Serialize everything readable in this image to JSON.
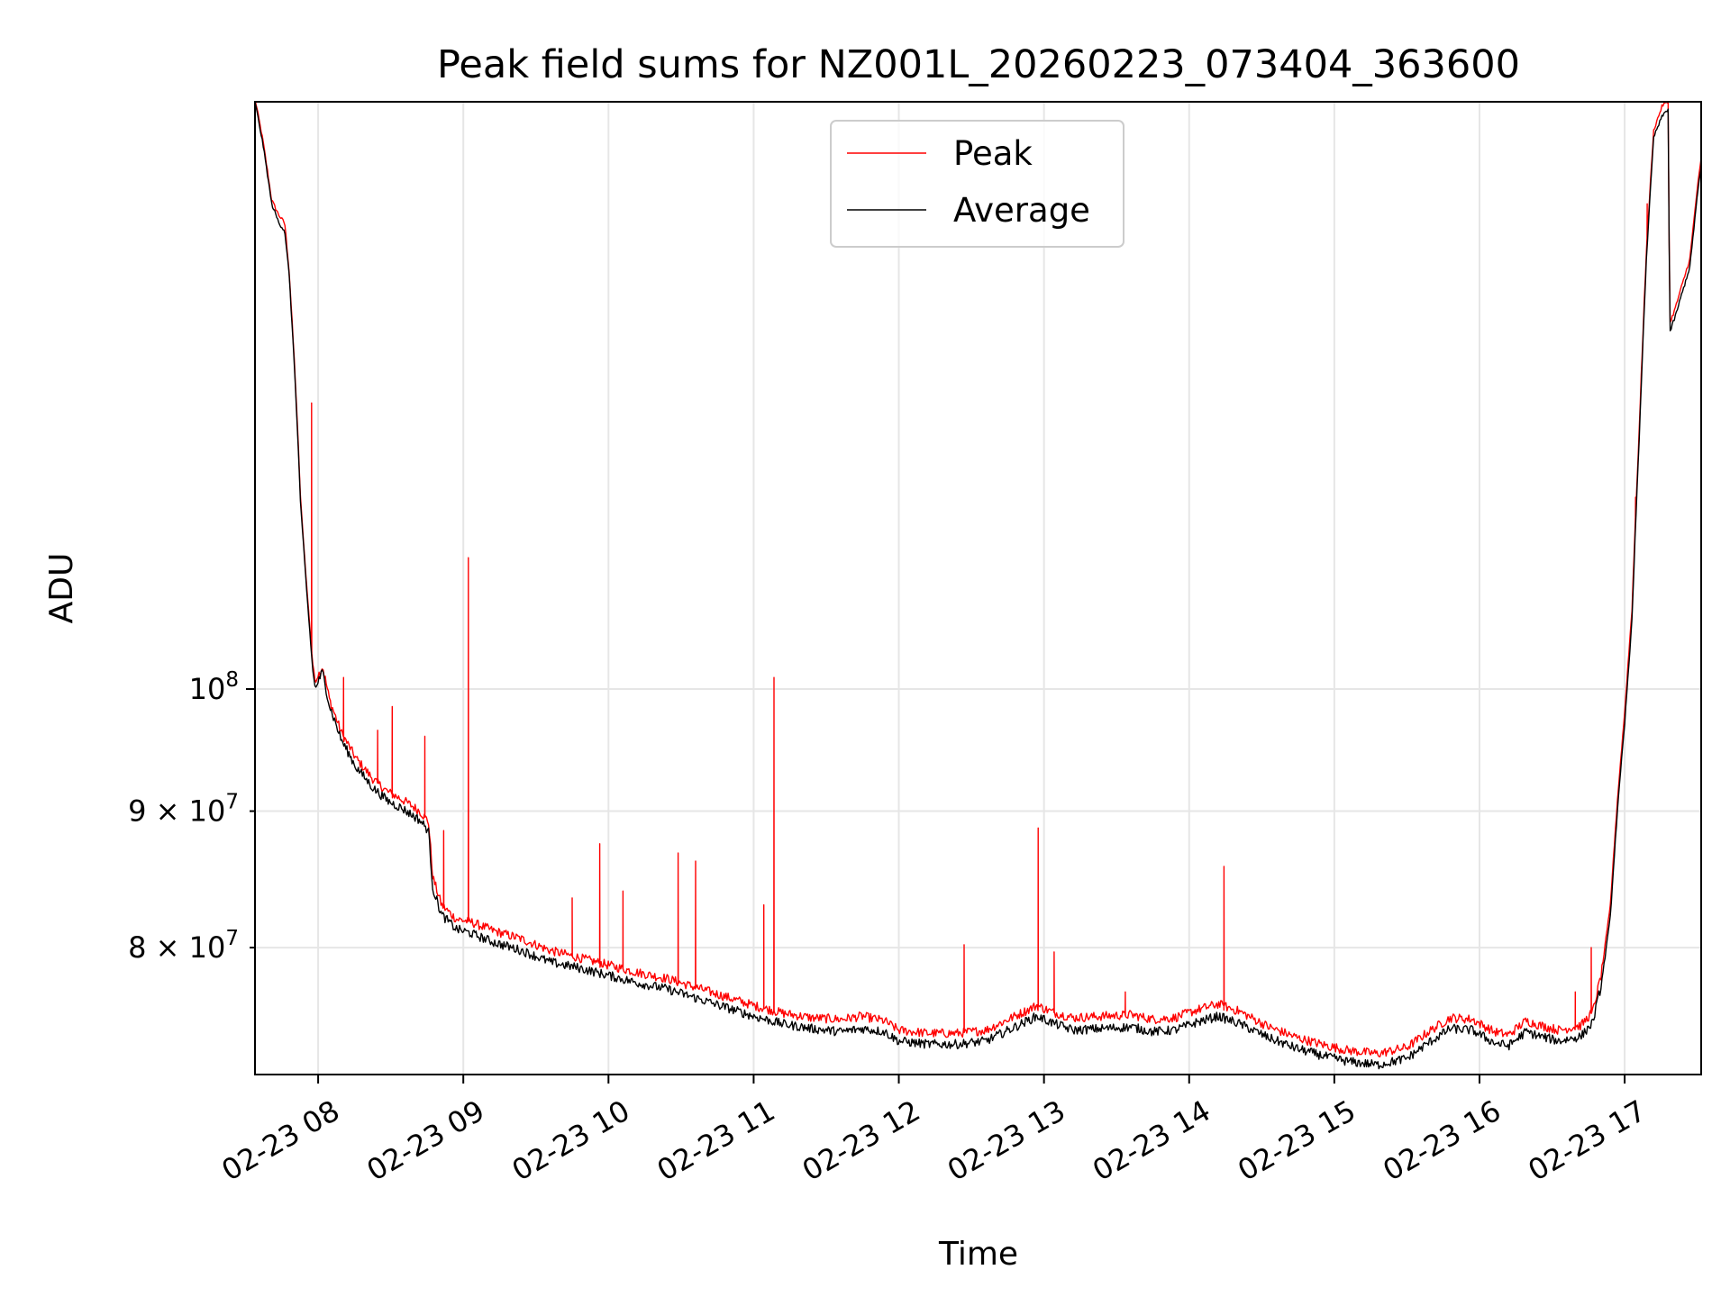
{
  "chart_data": {
    "type": "line",
    "title": "Peak field sums for NZ001L_20260223_073404_363600",
    "xlabel": "Time",
    "ylabel": "ADU",
    "xlim": [
      7.565,
      17.527
    ],
    "ylim": [
      71700000,
      166000000
    ],
    "yscale": "log",
    "grid": true,
    "legend_position": "top-center",
    "x_ticks": [
      {
        "value": 8,
        "label": "02-23 08"
      },
      {
        "value": 9,
        "label": "02-23 09"
      },
      {
        "value": 10,
        "label": "02-23 10"
      },
      {
        "value": 11,
        "label": "02-23 11"
      },
      {
        "value": 12,
        "label": "02-23 12"
      },
      {
        "value": 13,
        "label": "02-23 13"
      },
      {
        "value": 14,
        "label": "02-23 14"
      },
      {
        "value": 15,
        "label": "02-23 15"
      },
      {
        "value": 16,
        "label": "02-23 16"
      },
      {
        "value": 17,
        "label": "02-23 17"
      }
    ],
    "y_ticks": [
      {
        "value": 80000000,
        "mantissa": "8",
        "base": "10",
        "exp": "7",
        "type": "minor"
      },
      {
        "value": 90000000,
        "mantissa": "9",
        "base": "10",
        "exp": "7",
        "type": "minor"
      },
      {
        "value": 100000000,
        "mantissa": "",
        "base": "10",
        "exp": "8",
        "type": "major"
      }
    ],
    "series": [
      {
        "name": "Average",
        "color": "#000000",
        "points": [
          [
            7.565,
            166000000
          ],
          [
            7.62,
            160000000
          ],
          [
            7.68,
            152000000
          ],
          [
            7.73,
            149500000
          ],
          [
            7.77,
            148500000
          ],
          [
            7.8,
            143000000
          ],
          [
            7.84,
            131000000
          ],
          [
            7.88,
            117000000
          ],
          [
            7.92,
            109000000
          ],
          [
            7.96,
            102000000
          ],
          [
            7.98,
            100000000
          ],
          [
            8.03,
            101500000
          ],
          [
            8.08,
            98500000
          ],
          [
            8.16,
            95700000
          ],
          [
            8.26,
            93500000
          ],
          [
            8.38,
            91800000
          ],
          [
            8.48,
            90800000
          ],
          [
            8.58,
            90200000
          ],
          [
            8.7,
            89300000
          ],
          [
            8.76,
            88500000
          ],
          [
            8.79,
            84200000
          ],
          [
            8.85,
            82300000
          ],
          [
            8.95,
            81300000
          ],
          [
            9.05,
            81000000
          ],
          [
            9.2,
            80400000
          ],
          [
            9.4,
            79800000
          ],
          [
            9.6,
            79000000
          ],
          [
            9.8,
            78600000
          ],
          [
            10.0,
            78100000
          ],
          [
            10.2,
            77600000
          ],
          [
            10.4,
            77200000
          ],
          [
            10.6,
            76600000
          ],
          [
            10.8,
            76000000
          ],
          [
            11.0,
            75400000
          ],
          [
            11.2,
            74900000
          ],
          [
            11.4,
            74600000
          ],
          [
            11.6,
            74400000
          ],
          [
            11.75,
            74600000
          ],
          [
            11.9,
            74400000
          ],
          [
            12.0,
            73800000
          ],
          [
            12.2,
            73600000
          ],
          [
            12.4,
            73600000
          ],
          [
            12.6,
            73800000
          ],
          [
            12.8,
            74700000
          ],
          [
            12.95,
            75400000
          ],
          [
            13.05,
            75000000
          ],
          [
            13.2,
            74500000
          ],
          [
            13.4,
            74600000
          ],
          [
            13.6,
            74700000
          ],
          [
            13.75,
            74400000
          ],
          [
            13.9,
            74500000
          ],
          [
            14.05,
            75000000
          ],
          [
            14.2,
            75400000
          ],
          [
            14.35,
            74900000
          ],
          [
            14.55,
            74000000
          ],
          [
            14.75,
            73300000
          ],
          [
            14.95,
            72800000
          ],
          [
            15.1,
            72500000
          ],
          [
            15.3,
            72300000
          ],
          [
            15.5,
            72700000
          ],
          [
            15.65,
            73700000
          ],
          [
            15.8,
            74600000
          ],
          [
            15.95,
            74500000
          ],
          [
            16.1,
            73700000
          ],
          [
            16.2,
            73500000
          ],
          [
            16.32,
            74400000
          ],
          [
            16.42,
            74100000
          ],
          [
            16.55,
            73800000
          ],
          [
            16.7,
            74100000
          ],
          [
            16.78,
            75000000
          ],
          [
            16.84,
            77500000
          ],
          [
            16.9,
            82000000
          ],
          [
            16.95,
            90000000
          ],
          [
            17.0,
            97000000
          ],
          [
            17.05,
            106000000
          ],
          [
            17.1,
            124000000
          ],
          [
            17.15,
            145000000
          ],
          [
            17.2,
            161000000
          ],
          [
            17.26,
            164000000
          ],
          [
            17.3,
            165000000
          ],
          [
            17.31,
            136000000
          ],
          [
            17.35,
            138000000
          ],
          [
            17.4,
            141000000
          ],
          [
            17.45,
            144000000
          ],
          [
            17.5,
            153000000
          ],
          [
            17.527,
            157000000
          ]
        ],
        "spikes": []
      },
      {
        "name": "Peak",
        "color": "#ff0000",
        "points": [
          [
            7.565,
            166500000
          ],
          [
            7.62,
            160500000
          ],
          [
            7.68,
            152500000
          ],
          [
            7.73,
            150500000
          ],
          [
            7.77,
            149500000
          ],
          [
            7.8,
            143500000
          ],
          [
            7.84,
            131500000
          ],
          [
            7.88,
            117500000
          ],
          [
            7.92,
            109500000
          ],
          [
            7.96,
            102500000
          ],
          [
            7.98,
            100600000
          ],
          [
            8.03,
            102000000
          ],
          [
            8.08,
            99000000
          ],
          [
            8.16,
            96300000
          ],
          [
            8.26,
            94200000
          ],
          [
            8.38,
            92500000
          ],
          [
            8.48,
            91500000
          ],
          [
            8.58,
            90900000
          ],
          [
            8.7,
            90000000
          ],
          [
            8.76,
            89200000
          ],
          [
            8.79,
            85000000
          ],
          [
            8.85,
            83000000
          ],
          [
            8.95,
            82000000
          ],
          [
            9.05,
            81800000
          ],
          [
            9.2,
            81200000
          ],
          [
            9.4,
            80600000
          ],
          [
            9.6,
            79800000
          ],
          [
            9.8,
            79300000
          ],
          [
            10.0,
            78800000
          ],
          [
            10.2,
            78300000
          ],
          [
            10.4,
            77900000
          ],
          [
            10.6,
            77300000
          ],
          [
            10.8,
            76700000
          ],
          [
            11.0,
            76100000
          ],
          [
            11.2,
            75600000
          ],
          [
            11.4,
            75300000
          ],
          [
            11.6,
            75200000
          ],
          [
            11.75,
            75400000
          ],
          [
            11.9,
            75100000
          ],
          [
            12.0,
            74500000
          ],
          [
            12.2,
            74300000
          ],
          [
            12.4,
            74300000
          ],
          [
            12.6,
            74500000
          ],
          [
            12.8,
            75400000
          ],
          [
            12.95,
            76100000
          ],
          [
            13.05,
            75700000
          ],
          [
            13.2,
            75300000
          ],
          [
            13.4,
            75400000
          ],
          [
            13.6,
            75500000
          ],
          [
            13.75,
            75200000
          ],
          [
            13.9,
            75300000
          ],
          [
            14.05,
            75800000
          ],
          [
            14.2,
            76200000
          ],
          [
            14.35,
            75700000
          ],
          [
            14.55,
            74700000
          ],
          [
            14.75,
            74000000
          ],
          [
            14.95,
            73500000
          ],
          [
            15.1,
            73200000
          ],
          [
            15.3,
            73000000
          ],
          [
            15.5,
            73400000
          ],
          [
            15.65,
            74400000
          ],
          [
            15.8,
            75300000
          ],
          [
            15.95,
            75200000
          ],
          [
            16.1,
            74400000
          ],
          [
            16.2,
            74200000
          ],
          [
            16.32,
            75100000
          ],
          [
            16.42,
            74800000
          ],
          [
            16.55,
            74500000
          ],
          [
            16.7,
            74800000
          ],
          [
            16.78,
            75700000
          ],
          [
            16.84,
            78200000
          ],
          [
            16.9,
            82800000
          ],
          [
            16.95,
            90800000
          ],
          [
            17.0,
            98000000
          ],
          [
            17.05,
            107000000
          ],
          [
            17.1,
            125000000
          ],
          [
            17.15,
            146000000
          ],
          [
            17.2,
            162000000
          ],
          [
            17.26,
            165500000
          ],
          [
            17.3,
            166000000
          ],
          [
            17.31,
            137000000
          ],
          [
            17.35,
            139000000
          ],
          [
            17.4,
            142000000
          ],
          [
            17.45,
            145000000
          ],
          [
            17.5,
            154000000
          ],
          [
            17.527,
            158000000
          ]
        ],
        "spikes": [
          [
            7.955,
            128000000
          ],
          [
            8.175,
            101000000
          ],
          [
            8.41,
            96500000
          ],
          [
            8.51,
            98500000
          ],
          [
            8.735,
            96000000
          ],
          [
            8.865,
            88500000
          ],
          [
            9.035,
            112000000
          ],
          [
            9.75,
            83500000
          ],
          [
            9.94,
            87500000
          ],
          [
            10.1,
            84000000
          ],
          [
            10.48,
            86800000
          ],
          [
            10.6,
            86200000
          ],
          [
            11.07,
            83000000
          ],
          [
            11.14,
            101000000
          ],
          [
            12.45,
            80200000
          ],
          [
            12.96,
            88700000
          ],
          [
            13.07,
            79700000
          ],
          [
            13.56,
            77000000
          ],
          [
            14.24,
            85800000
          ],
          [
            16.66,
            77000000
          ],
          [
            16.77,
            80000000
          ],
          [
            17.075,
            118000000
          ],
          [
            17.155,
            152000000
          ]
        ]
      }
    ]
  }
}
